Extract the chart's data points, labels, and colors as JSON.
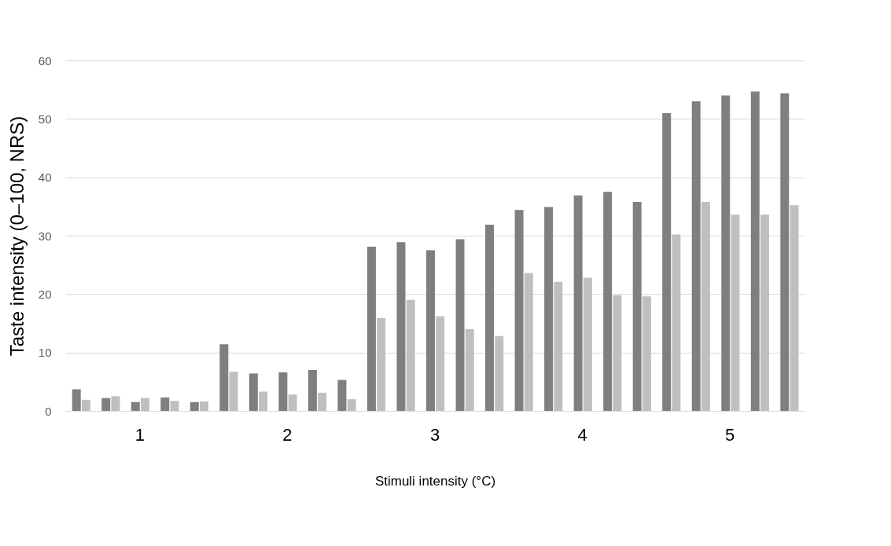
{
  "chart_data": {
    "type": "bar",
    "xlabel": "Stimuli intensity (°C)",
    "ylabel": "Taste intensity (0–100, NRS)",
    "categories": [
      null,
      null,
      "1",
      null,
      null,
      null,
      null,
      "2",
      null,
      null,
      null,
      null,
      "3",
      null,
      null,
      null,
      null,
      "4",
      null,
      null,
      null,
      null,
      "5",
      null,
      null
    ],
    "series": [
      {
        "color": "#7f7f7f",
        "values": [
          3.7,
          2.2,
          1.5,
          2.3,
          1.5,
          11.4,
          6.4,
          6.6,
          7.0,
          5.3,
          28.1,
          28.9,
          27.5,
          29.4,
          31.9,
          34.4,
          34.9,
          36.9,
          37.5,
          35.8,
          51.0,
          53.0,
          54.0,
          54.7,
          54.4
        ]
      },
      {
        "color": "#bfbfbf",
        "values": [
          1.9,
          2.5,
          2.2,
          1.7,
          1.6,
          6.7,
          3.3,
          2.8,
          3.1,
          2.0,
          15.9,
          19.0,
          16.2,
          14.0,
          12.8,
          23.6,
          22.1,
          22.8,
          19.8,
          19.6,
          30.2,
          35.8,
          33.6,
          33.6,
          35.2
        ]
      }
    ],
    "ylim": [
      0,
      60
    ],
    "yticks": [
      0,
      10,
      20,
      30,
      40,
      50,
      60
    ],
    "grid": "y",
    "legend": false
  }
}
